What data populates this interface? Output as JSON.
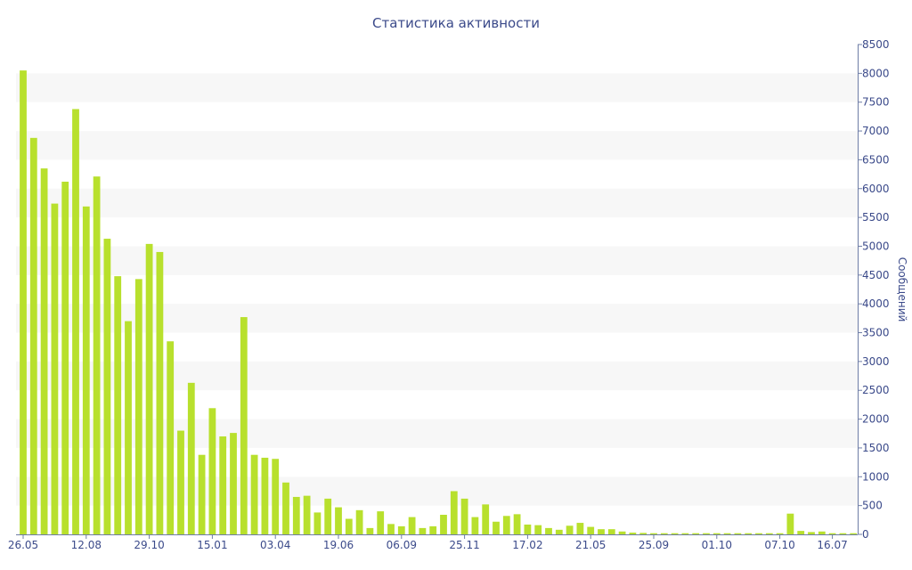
{
  "chart_data": {
    "type": "bar",
    "title": "Статистика активности",
    "ylabel": "Сообщений",
    "xlabel": "",
    "ylim": [
      0,
      8500
    ],
    "y_ticks": [
      0,
      500,
      1000,
      1500,
      2000,
      2500,
      3000,
      3500,
      4000,
      4500,
      5000,
      5500,
      6000,
      6500,
      7000,
      7500,
      8000,
      8500
    ],
    "y_axis_position": "right",
    "x_tick_labels": [
      {
        "index": 0,
        "label": "26.05"
      },
      {
        "index": 6,
        "label": "12.08"
      },
      {
        "index": 12,
        "label": "29.10"
      },
      {
        "index": 18,
        "label": "15.01"
      },
      {
        "index": 24,
        "label": "03.04"
      },
      {
        "index": 30,
        "label": "19.06"
      },
      {
        "index": 36,
        "label": "06.09"
      },
      {
        "index": 42,
        "label": "25.11"
      },
      {
        "index": 48,
        "label": "17.02"
      },
      {
        "index": 54,
        "label": "21.05"
      },
      {
        "index": 60,
        "label": "25.09"
      },
      {
        "index": 66,
        "label": "01.10"
      },
      {
        "index": 72,
        "label": "07.10"
      },
      {
        "index": 77,
        "label": "16.07"
      }
    ],
    "values": [
      8050,
      6880,
      6350,
      5740,
      6120,
      7380,
      5690,
      6210,
      5130,
      4480,
      3700,
      4430,
      5040,
      4900,
      3350,
      1800,
      2630,
      1380,
      2190,
      1700,
      1760,
      3770,
      1380,
      1330,
      1310,
      900,
      650,
      670,
      380,
      620,
      470,
      270,
      420,
      110,
      400,
      180,
      140,
      300,
      110,
      140,
      340,
      750,
      620,
      300,
      520,
      220,
      320,
      350,
      170,
      160,
      110,
      80,
      150,
      200,
      130,
      90,
      90,
      50,
      30,
      25,
      20,
      20,
      20,
      20,
      20,
      20,
      20,
      20,
      20,
      20,
      20,
      20,
      20,
      360,
      60,
      40,
      50,
      20,
      20,
      20
    ],
    "bar_color": "#b8e02d",
    "band_color": "#f7f7f7",
    "text_color": "#3b4a8a",
    "grid": "alternating horizontal bands",
    "legend": "none"
  }
}
